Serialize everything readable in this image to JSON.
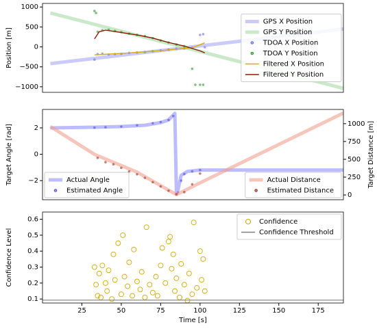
{
  "chart_data": [
    {
      "type": "line",
      "ylabel": "Position [m]",
      "xlim": [
        0,
        191
      ],
      "ylim": [
        -1140,
        1090
      ],
      "yticks": [
        {
          "value": -1000,
          "label": "−1000"
        },
        {
          "value": -500,
          "label": "−500"
        },
        0,
        500,
        1000
      ],
      "legend": "center right",
      "series": [
        {
          "name": "GPS X Position",
          "style": "band",
          "color": "#a8a8f8",
          "x": [
            5,
            191
          ],
          "values": [
            -420,
            450
          ]
        },
        {
          "name": "GPS Y Position",
          "style": "band",
          "color": "#a6d8a6",
          "x": [
            5,
            191
          ],
          "values": [
            850,
            -1040
          ]
        },
        {
          "name": "TDOA X Position",
          "style": "dots",
          "color": "#6a6af0",
          "x": [
            33,
            35,
            38,
            42,
            46,
            50,
            55,
            60,
            65,
            70,
            75,
            80,
            85,
            90,
            95,
            100,
            102,
            103
          ],
          "values": [
            -320,
            -180,
            -170,
            -190,
            -180,
            -175,
            -150,
            -140,
            -130,
            -110,
            -90,
            -70,
            -50,
            -40,
            -20,
            300,
            320,
            -10
          ]
        },
        {
          "name": "TDOA Y Position",
          "style": "dots",
          "color": "#2a9a2a",
          "x": [
            33,
            34,
            35,
            38,
            42,
            46,
            50,
            55,
            60,
            65,
            70,
            75,
            80,
            85,
            90,
            95,
            97,
            100,
            102
          ],
          "values": [
            900,
            850,
            380,
            420,
            430,
            400,
            370,
            330,
            300,
            270,
            220,
            160,
            110,
            60,
            20,
            -550,
            -950,
            -950,
            -950
          ]
        },
        {
          "name": "Filtered X Position",
          "style": "line",
          "color": "#d8b000",
          "x": [
            33,
            38,
            45,
            55,
            65,
            75,
            85,
            95,
            103
          ],
          "values": [
            -200,
            -190,
            -175,
            -150,
            -125,
            -95,
            -55,
            -20,
            100
          ]
        },
        {
          "name": "Filtered Y Position",
          "style": "line",
          "color": "#8b1a00",
          "x": [
            33,
            36,
            40,
            50,
            60,
            70,
            80,
            90,
            95,
            100,
            103
          ],
          "values": [
            200,
            380,
            420,
            360,
            300,
            220,
            110,
            20,
            -40,
            -100,
            -150
          ]
        }
      ]
    },
    {
      "type": "line",
      "ylabel": "Target Angle [rad]",
      "y2label": "Target Distance [m]",
      "xlim": [
        0,
        191
      ],
      "ylim": [
        -3.45,
        3.4
      ],
      "yticks": [
        {
          "value": -2,
          "label": "−2"
        },
        0,
        2
      ],
      "y2lim": [
        -67,
        1200
      ],
      "y2ticks": [
        0,
        250,
        500,
        750,
        1000
      ],
      "legend": "lower left",
      "legend2": "lower right",
      "series": [
        {
          "name": "Actual Angle",
          "style": "band",
          "color": "#9090ff",
          "x": [
            5,
            33,
            50,
            65,
            75,
            80,
            84,
            85,
            86,
            88,
            92,
            100,
            191
          ],
          "values": [
            2.0,
            2.05,
            2.1,
            2.2,
            2.4,
            2.6,
            3.1,
            -3.0,
            -2.7,
            -1.6,
            -1.3,
            -1.2,
            -1.2
          ]
        },
        {
          "name": "Estimated Angle",
          "style": "dots",
          "color": "#5050e0",
          "x": [
            33,
            40,
            50,
            60,
            70,
            75,
            80,
            83,
            86,
            88,
            90,
            95,
            100
          ],
          "values": [
            2.02,
            2.05,
            2.1,
            2.2,
            2.35,
            2.45,
            2.6,
            2.9,
            -2.9,
            -2.0,
            -1.5,
            -1.3,
            -1.2
          ]
        },
        {
          "name": "Actual Distance",
          "style": "band",
          "axis": "y2",
          "color": "#f0a090",
          "x": [
            5,
            33,
            60,
            85,
            100,
            191
          ],
          "values": [
            960,
            570,
            320,
            5,
            170,
            1150
          ]
        },
        {
          "name": "Estimated Distance",
          "style": "dots",
          "axis": "y2",
          "color": "#a03020",
          "x": [
            33,
            35,
            40,
            45,
            50,
            55,
            60,
            65,
            70,
            75,
            80,
            85,
            90,
            95,
            100
          ],
          "values": [
            240,
            520,
            460,
            430,
            380,
            330,
            290,
            240,
            180,
            120,
            60,
            10,
            40,
            150,
            300
          ]
        }
      ]
    },
    {
      "type": "scatter",
      "ylabel": "Confidence Level",
      "xlabel": "Time [s]",
      "xlim": [
        0,
        191
      ],
      "ylim": [
        0.075,
        0.645
      ],
      "xticks": [
        25,
        50,
        75,
        100,
        125,
        150,
        175
      ],
      "yticks": [
        0.1,
        0.2,
        0.3,
        0.4,
        0.5,
        0.6
      ],
      "legend": "upper right",
      "series": [
        {
          "name": "Confidence",
          "style": "hollow",
          "color": "#d4a800",
          "x": [
            33,
            34,
            35,
            36,
            37,
            38,
            40,
            41,
            42,
            44,
            45,
            46,
            48,
            50,
            51,
            52,
            54,
            55,
            57,
            58,
            60,
            62,
            63,
            65,
            66,
            68,
            70,
            72,
            73,
            75,
            76,
            78,
            80,
            81,
            82,
            83,
            84,
            85,
            87,
            88,
            90,
            92,
            93,
            95,
            96,
            98,
            100,
            101,
            102,
            103
          ],
          "values": [
            0.3,
            0.19,
            0.12,
            0.26,
            0.11,
            0.31,
            0.2,
            0.15,
            0.28,
            0.1,
            0.38,
            0.22,
            0.45,
            0.13,
            0.5,
            0.24,
            0.18,
            0.33,
            0.12,
            0.41,
            0.21,
            0.16,
            0.27,
            0.11,
            0.55,
            0.19,
            0.14,
            0.24,
            0.12,
            0.31,
            0.42,
            0.2,
            0.46,
            0.49,
            0.29,
            0.38,
            0.15,
            0.23,
            0.11,
            0.32,
            0.19,
            0.09,
            0.26,
            0.13,
            0.58,
            0.17,
            0.4,
            0.22,
            0.35,
            0.15
          ]
        },
        {
          "name": "Confidence Threshold",
          "style": "hline",
          "color": "#808080",
          "values": [
            0.093
          ]
        }
      ]
    }
  ]
}
